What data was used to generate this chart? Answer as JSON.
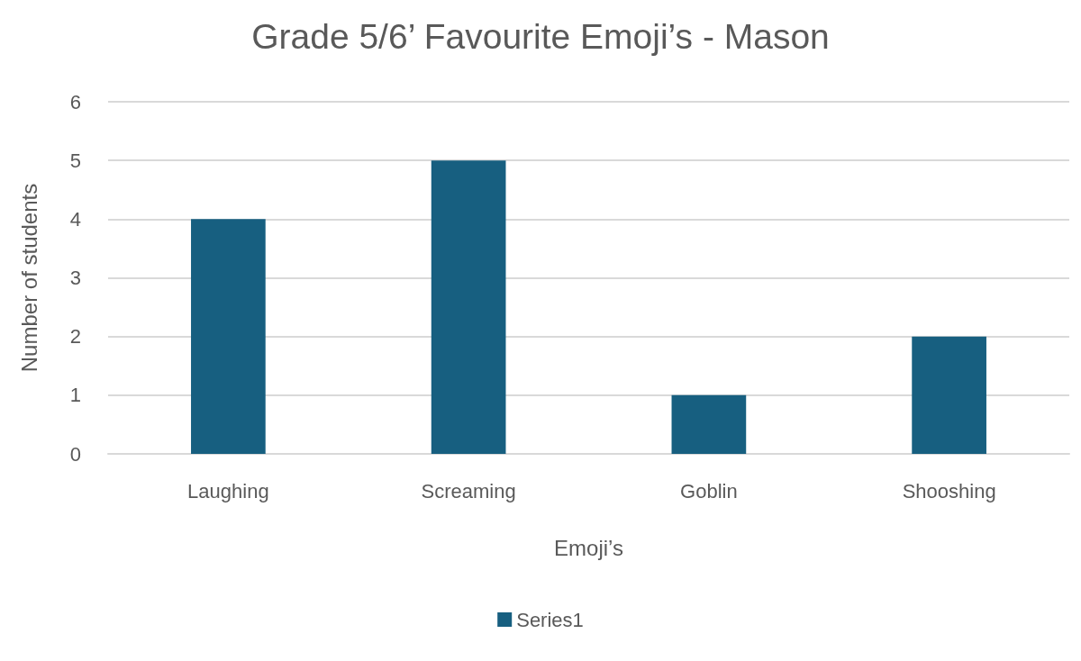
{
  "chart_data": {
    "type": "bar",
    "title": "Grade 5/6’ Favourite Emoji’s - Mason",
    "xlabel": "Emoji’s",
    "ylabel": "Number of students",
    "categories": [
      "Laughing",
      "Screaming",
      "Goblin",
      "Shooshing"
    ],
    "series": [
      {
        "name": "Series1",
        "color": "#175f80",
        "values": [
          4,
          5,
          1,
          2
        ]
      }
    ],
    "ylim": [
      0,
      6
    ],
    "yticks": [
      0,
      1,
      2,
      3,
      4,
      5,
      6
    ],
    "grid": "y",
    "legend": "bottom"
  }
}
